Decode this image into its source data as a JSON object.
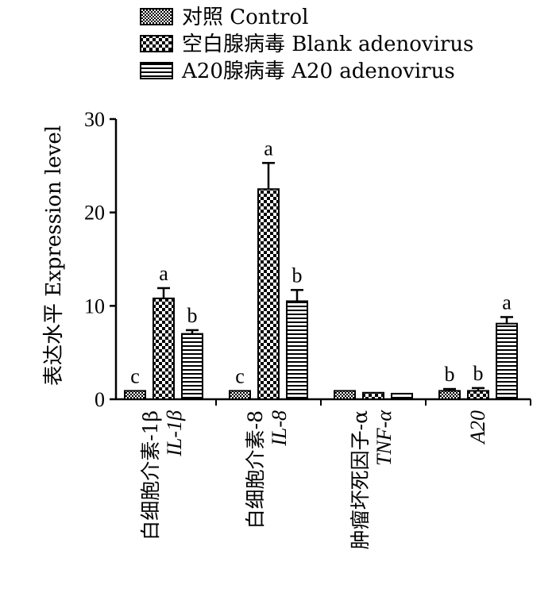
{
  "chart_data": {
    "type": "bar",
    "title": "",
    "ylabel": "表达水平 Expression level",
    "xlabel": "",
    "ylim": [
      0,
      30
    ],
    "yticks": [
      "0",
      "10",
      "20",
      "30"
    ],
    "grid": false,
    "legend_position": "top",
    "categories": [
      {
        "cn": "白细胞介素-1β",
        "en": "IL-1β"
      },
      {
        "cn": "白细胞介素-8",
        "en": "IL-8"
      },
      {
        "cn": "肿瘤坏死因子-α",
        "en": "TNF-α"
      },
      {
        "cn": "",
        "en": "A20"
      }
    ],
    "series": [
      {
        "name": "对照 Control",
        "pattern": "fine-check",
        "values": [
          0.9,
          0.9,
          0.9,
          0.9
        ],
        "errors": [
          0,
          0,
          0,
          0.2
        ],
        "labels": [
          "c",
          "c",
          "",
          "b"
        ]
      },
      {
        "name": "空白腺病毒 Blank adenovirus",
        "pattern": "coarse-check",
        "values": [
          10.8,
          22.5,
          0.7,
          0.9
        ],
        "errors": [
          1.1,
          2.8,
          0,
          0.3
        ],
        "labels": [
          "a",
          "a",
          "",
          "b"
        ]
      },
      {
        "name": "A20腺病毒 A20 adenovirus",
        "pattern": "horizontal-stripes",
        "values": [
          7.0,
          10.5,
          0.6,
          8.1
        ],
        "errors": [
          0.4,
          1.2,
          0,
          0.7
        ],
        "labels": [
          "b",
          "b",
          "",
          "a"
        ]
      }
    ]
  }
}
